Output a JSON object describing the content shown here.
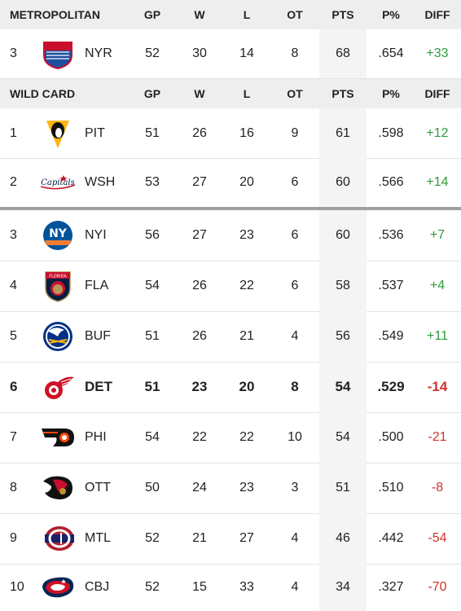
{
  "header": {
    "section": "METROPOLITAN",
    "gp": "GP",
    "w": "W",
    "l": "L",
    "ot": "OT",
    "pts": "PTS",
    "pct": "P%",
    "diff": "DIFF"
  },
  "metro_rows": [
    {
      "rank": "3",
      "team": "NYR",
      "logo": "rangers-logo",
      "gp": "52",
      "w": "30",
      "l": "14",
      "ot": "8",
      "pts": "68",
      "pct": ".654",
      "diff": "+33"
    }
  ],
  "wildcard_header": {
    "section": "WILD CARD",
    "gp": "GP",
    "w": "W",
    "l": "L",
    "ot": "OT",
    "pts": "PTS",
    "pct": "P%",
    "diff": "DIFF"
  },
  "wildcard_rows": [
    {
      "rank": "1",
      "team": "PIT",
      "logo": "penguins-logo",
      "gp": "51",
      "w": "26",
      "l": "16",
      "ot": "9",
      "pts": "61",
      "pct": ".598",
      "diff": "+12"
    },
    {
      "rank": "2",
      "team": "WSH",
      "logo": "capitals-logo",
      "gp": "53",
      "w": "27",
      "l": "20",
      "ot": "6",
      "pts": "60",
      "pct": ".566",
      "diff": "+14"
    },
    {
      "rank": "3",
      "team": "NYI",
      "logo": "islanders-logo",
      "gp": "56",
      "w": "27",
      "l": "23",
      "ot": "6",
      "pts": "60",
      "pct": ".536",
      "diff": "+7"
    },
    {
      "rank": "4",
      "team": "FLA",
      "logo": "panthers-logo",
      "gp": "54",
      "w": "26",
      "l": "22",
      "ot": "6",
      "pts": "58",
      "pct": ".537",
      "diff": "+4"
    },
    {
      "rank": "5",
      "team": "BUF",
      "logo": "sabres-logo",
      "gp": "51",
      "w": "26",
      "l": "21",
      "ot": "4",
      "pts": "56",
      "pct": ".549",
      "diff": "+11"
    },
    {
      "rank": "6",
      "team": "DET",
      "logo": "red-wings-logo",
      "gp": "51",
      "w": "23",
      "l": "20",
      "ot": "8",
      "pts": "54",
      "pct": ".529",
      "diff": "-14",
      "highlight": true
    },
    {
      "rank": "7",
      "team": "PHI",
      "logo": "flyers-logo",
      "gp": "54",
      "w": "22",
      "l": "22",
      "ot": "10",
      "pts": "54",
      "pct": ".500",
      "diff": "-21"
    },
    {
      "rank": "8",
      "team": "OTT",
      "logo": "senators-logo",
      "gp": "50",
      "w": "24",
      "l": "23",
      "ot": "3",
      "pts": "51",
      "pct": ".510",
      "diff": "-8"
    },
    {
      "rank": "9",
      "team": "MTL",
      "logo": "canadiens-logo",
      "gp": "52",
      "w": "21",
      "l": "27",
      "ot": "4",
      "pts": "46",
      "pct": ".442",
      "diff": "-54"
    },
    {
      "rank": "10",
      "team": "CBJ",
      "logo": "blue-jackets-logo",
      "gp": "52",
      "w": "15",
      "l": "33",
      "ot": "4",
      "pts": "34",
      "pct": ".327",
      "diff": "-70"
    }
  ],
  "logo_text": {
    "rangers": "NEW YORK RANGERS",
    "capitals": "Capitals",
    "islanders": "NY",
    "panthers": "FLORIDA"
  },
  "colors": {
    "positive": "#2e9b3a",
    "negative": "#d0312d",
    "header_bg": "#eeeeee",
    "pts_column_bg": "#f4f4f4",
    "cutline": "#a0a0a0"
  }
}
